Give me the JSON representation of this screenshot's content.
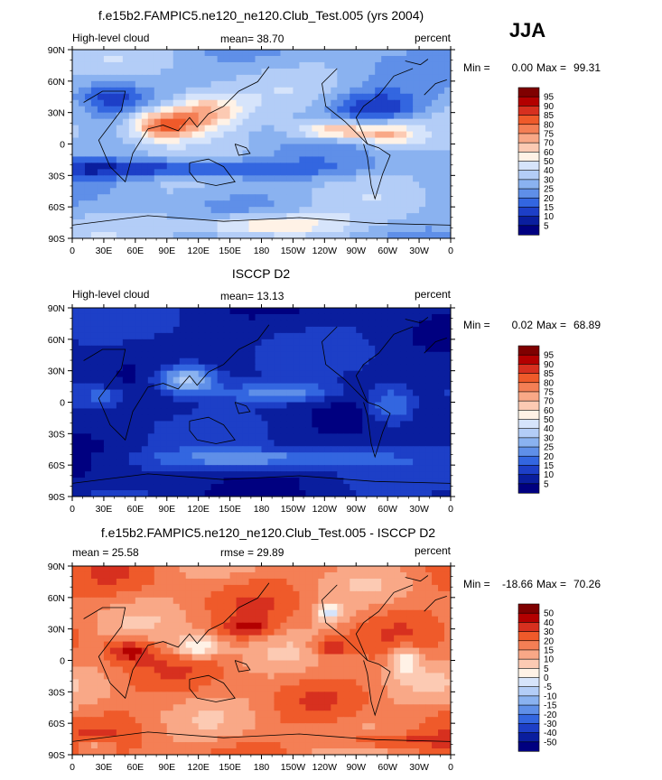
{
  "season": "JJA",
  "panels": [
    {
      "title": "f.e15b2.FAMPIC5.ne120_ne120.Club_Test.005 (yrs 2004)",
      "left_label": "High-level cloud",
      "center_label": "mean=  38.70",
      "right_label": "percent",
      "rmse_label": "",
      "stats": {
        "min_label": "Min =",
        "min_value": "0.00",
        "max_label": "Max =",
        "max_value": "99.31"
      },
      "colorbar": {
        "levels": [
          "95",
          "90",
          "85",
          "80",
          "75",
          "70",
          "60",
          "50",
          "40",
          "30",
          "25",
          "20",
          "15",
          "10",
          "5"
        ],
        "colors": [
          "#7f0000",
          "#b30000",
          "#d7301f",
          "#ef5a2a",
          "#f47f55",
          "#f9a887",
          "#fccab3",
          "#fff2e6",
          "#d6e4fb",
          "#b3cdf7",
          "#8ab2f0",
          "#5f8fe8",
          "#3366e0",
          "#1d3fc7",
          "#0a1e9e",
          "#000080"
        ]
      },
      "palette": [
        "#000080",
        "#0a1e9e",
        "#1d3fc7",
        "#3366e0",
        "#5f8fe8",
        "#8ab2f0",
        "#b3cdf7",
        "#d6e4fb",
        "#fff2e6",
        "#fccab3",
        "#f9a887",
        "#f47f55",
        "#ef5a2a",
        "#d7301f",
        "#b30000",
        "#7f0000"
      ]
    },
    {
      "title": "ISCCP D2",
      "left_label": "High-level cloud",
      "center_label": "mean=  13.13",
      "right_label": "percent",
      "rmse_label": "",
      "stats": {
        "min_label": "Min =",
        "min_value": "0.02",
        "max_label": "Max =",
        "max_value": "68.89"
      },
      "colorbar": {
        "levels": [
          "95",
          "90",
          "85",
          "80",
          "75",
          "70",
          "60",
          "50",
          "40",
          "30",
          "25",
          "20",
          "15",
          "10",
          "5"
        ],
        "colors": [
          "#7f0000",
          "#b30000",
          "#d7301f",
          "#ef5a2a",
          "#f47f55",
          "#f9a887",
          "#fccab3",
          "#fff2e6",
          "#d6e4fb",
          "#b3cdf7",
          "#8ab2f0",
          "#5f8fe8",
          "#3366e0",
          "#1d3fc7",
          "#0a1e9e",
          "#000080"
        ]
      },
      "palette": [
        "#000080",
        "#0a1e9e",
        "#1d3fc7",
        "#3366e0",
        "#5f8fe8",
        "#8ab2f0",
        "#b3cdf7",
        "#d6e4fb",
        "#fff2e6",
        "#fccab3",
        "#f9a887",
        "#f47f55",
        "#ef5a2a",
        "#d7301f",
        "#b30000",
        "#7f0000"
      ]
    },
    {
      "title": "f.e15b2.FAMPIC5.ne120_ne120.Club_Test.005 - ISCCP D2",
      "left_label": "mean =  25.58",
      "center_label": "",
      "right_label": "percent",
      "rmse_label": "rmse =  29.89",
      "stats": {
        "min_label": "Min =",
        "min_value": "-18.66",
        "max_label": "Max =",
        "max_value": "70.26"
      },
      "colorbar": {
        "levels": [
          "50",
          "40",
          "30",
          "20",
          "15",
          "10",
          "5",
          "0",
          "-5",
          "-10",
          "-15",
          "-20",
          "-30",
          "-40",
          "-50"
        ],
        "colors": [
          "#7f0000",
          "#b30000",
          "#d7301f",
          "#ef5a2a",
          "#f47f55",
          "#f9a887",
          "#fccab3",
          "#fff2e6",
          "#d6e4fb",
          "#b3cdf7",
          "#8ab2f0",
          "#5f8fe8",
          "#3366e0",
          "#1d3fc7",
          "#0a1e9e",
          "#000080"
        ]
      },
      "palette": [
        "#000080",
        "#0a1e9e",
        "#1d3fc7",
        "#3366e0",
        "#5f8fe8",
        "#8ab2f0",
        "#b3cdf7",
        "#d6e4fb",
        "#fff2e6",
        "#fccab3",
        "#f9a887",
        "#f47f55",
        "#ef5a2a",
        "#d7301f",
        "#b30000",
        "#7f0000"
      ]
    }
  ],
  "axes": {
    "x_ticks": [
      "0",
      "30E",
      "60E",
      "90E",
      "120E",
      "150E",
      "180",
      "150W",
      "120W",
      "90W",
      "60W",
      "30W",
      "0"
    ],
    "y_ticks": [
      "90N",
      "60N",
      "30N",
      "0",
      "30S",
      "60S",
      "90S"
    ]
  },
  "chart_data": [
    {
      "type": "heatmap",
      "title": "f.e15b2.FAMPIC5.ne120_ne120.Club_Test.005 (yrs 2004)",
      "variable": "High-level cloud",
      "units": "percent",
      "mean": 38.7,
      "min": 0.0,
      "max": 99.31,
      "xlim": [
        0,
        360
      ],
      "ylim": [
        -90,
        90
      ],
      "colorbar_levels": [
        5,
        10,
        15,
        20,
        25,
        30,
        40,
        50,
        60,
        70,
        75,
        80,
        85,
        90,
        95
      ]
    },
    {
      "type": "heatmap",
      "title": "ISCCP D2",
      "variable": "High-level cloud",
      "units": "percent",
      "mean": 13.13,
      "min": 0.02,
      "max": 68.89,
      "xlim": [
        0,
        360
      ],
      "ylim": [
        -90,
        90
      ],
      "colorbar_levels": [
        5,
        10,
        15,
        20,
        25,
        30,
        40,
        50,
        60,
        70,
        75,
        80,
        85,
        90,
        95
      ]
    },
    {
      "type": "heatmap",
      "title": "f.e15b2.FAMPIC5.ne120_ne120.Club_Test.005 - ISCCP D2",
      "units": "percent",
      "mean": 25.58,
      "rmse": 29.89,
      "min": -18.66,
      "max": 70.26,
      "xlim": [
        0,
        360
      ],
      "ylim": [
        -90,
        90
      ],
      "colorbar_levels": [
        -50,
        -40,
        -30,
        -20,
        -15,
        -10,
        -5,
        0,
        5,
        10,
        15,
        20,
        30,
        40,
        50
      ]
    }
  ]
}
